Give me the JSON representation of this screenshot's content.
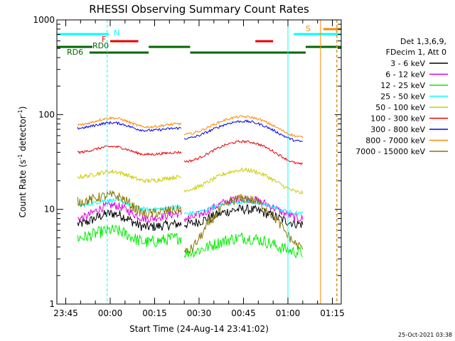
{
  "chart_data": {
    "type": "line",
    "title": "RHESSI Observing Summary Count Rates",
    "xlabel": "Start Time (24-Aug-14 23:41:02)",
    "ylabel_main": "Count Rate (s",
    "ylabel_sup1": "-1",
    "ylabel_mid": " detector",
    "ylabel_sup2": "-1",
    "ylabel_end": ")",
    "y_scale": "log",
    "ylim": [
      1,
      1000
    ],
    "xlim_minutes": [
      -18,
      78
    ],
    "y_ticks": [
      {
        "value": 1,
        "label": "1"
      },
      {
        "value": 10,
        "label": "10"
      },
      {
        "value": 100,
        "label": "100"
      },
      {
        "value": 1000,
        "label": "1000"
      }
    ],
    "x_ticks": [
      {
        "minute": -15,
        "label": "23:45"
      },
      {
        "minute": 0,
        "label": "00:00"
      },
      {
        "minute": 15,
        "label": "00:15"
      },
      {
        "minute": 30,
        "label": "00:30"
      },
      {
        "minute": 45,
        "label": "00:45"
      },
      {
        "minute": 60,
        "label": "01:00"
      },
      {
        "minute": 75,
        "label": "01:15"
      }
    ],
    "legend_header": [
      "Det 1,3,6,9,",
      "FDecim 1, Att 0"
    ],
    "series": [
      {
        "name": "3 - 6 keV",
        "color": "#000000",
        "seg1": [
          7,
          9,
          6.5,
          7
        ],
        "seg2": [
          7,
          10,
          7
        ],
        "noise": 0.12
      },
      {
        "name": "6 - 12 keV",
        "color": "#dd00dd",
        "seg1": [
          8,
          11,
          8,
          9
        ],
        "seg2": [
          8,
          13,
          8
        ],
        "noise": 0.1
      },
      {
        "name": "12 - 25 keV",
        "color": "#00ee00",
        "seg1": [
          5,
          6,
          4.5,
          5
        ],
        "seg2": [
          3.5,
          5,
          3.5
        ],
        "noise": 0.15
      },
      {
        "name": "25 - 50 keV",
        "color": "#00ffff",
        "seg1": [
          11,
          12.5,
          10,
          10.5
        ],
        "seg2": [
          9,
          12,
          9
        ],
        "noise": 0.05
      },
      {
        "name": "50 - 100 keV",
        "color": "#cccc00",
        "seg1": [
          22,
          25,
          20,
          22
        ],
        "seg2": [
          16,
          26,
          15
        ],
        "noise": 0.05
      },
      {
        "name": "100 - 300 keV",
        "color": "#ee0000",
        "seg1": [
          40,
          46,
          38,
          40
        ],
        "seg2": [
          32,
          52,
          30
        ],
        "noise": 0.03
      },
      {
        "name": "300 - 800 keV",
        "color": "#0000ee",
        "seg1": [
          72,
          82,
          68,
          72
        ],
        "seg2": [
          56,
          85,
          52
        ],
        "noise": 0.03
      },
      {
        "name": "800 - 7000 keV",
        "color": "#ff8800",
        "seg1": [
          78,
          92,
          74,
          80
        ],
        "seg2": [
          62,
          95,
          58
        ],
        "noise": 0.03
      },
      {
        "name": "7000 - 15000 keV",
        "color": "#887700",
        "seg1": [
          12,
          14,
          9,
          10
        ],
        "seg2": [
          3.5,
          13,
          4
        ],
        "noise": 0.12
      }
    ],
    "flags": [
      {
        "label": "N",
        "color": "#00ffff"
      },
      {
        "label": "F",
        "color": "#ee0000"
      },
      {
        "label": "RD0",
        "color": "#006600"
      },
      {
        "label": "RD6",
        "color": "#006600"
      },
      {
        "label": "S",
        "color": "#ff8800"
      }
    ],
    "grid": false,
    "legend_position": "right"
  },
  "footer": {
    "date_stamp": "25-Oct-2021 03:38"
  }
}
